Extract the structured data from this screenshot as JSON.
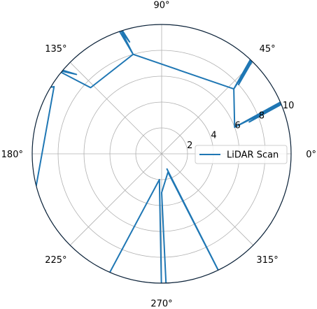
{
  "chart_data": {
    "type": "line",
    "projection": "polar",
    "title": "",
    "angular_tick_labels": [
      "0°",
      "45°",
      "90°",
      "135°",
      "180°",
      "225°",
      "270°",
      "315°"
    ],
    "angular_ticks_deg": [
      0,
      45,
      90,
      135,
      180,
      225,
      270,
      315
    ],
    "radial_tick_labels": [
      "2",
      "4",
      "6",
      "8",
      "10"
    ],
    "radial_ticks": [
      2,
      4,
      6,
      8,
      10
    ],
    "rlim": [
      0,
      10
    ],
    "grid": true,
    "legend": {
      "placement": "right",
      "entries": [
        "LiDAR Scan"
      ]
    },
    "series": [
      {
        "name": "LiDAR Scan",
        "color": "#1f77b4",
        "theta_deg": [
          20,
          23,
          20,
          24,
          20,
          42,
          47,
          42,
          48,
          42,
          106,
          109,
          106,
          110,
          106,
          137,
          142,
          137,
          143,
          148,
          153,
          148,
          204,
          206,
          204,
          246,
          248,
          246,
          265,
          270,
          272,
          270,
          289,
          296,
          289
        ],
        "r": [
          6.0,
          11.0,
          7.2,
          11.0,
          6.0,
          7.5,
          11.0,
          8.0,
          11.0,
          7.5,
          8.0,
          11.0,
          9.0,
          11.0,
          8.0,
          7.5,
          11.0,
          9.0,
          11.0,
          11.0,
          11.0,
          9.8,
          11.0,
          10.0,
          11.0,
          11.0,
          10.6,
          11.0,
          2.0,
          11.0,
          11.0,
          3.0,
          1.5,
          11.0,
          1.2
        ]
      }
    ]
  }
}
